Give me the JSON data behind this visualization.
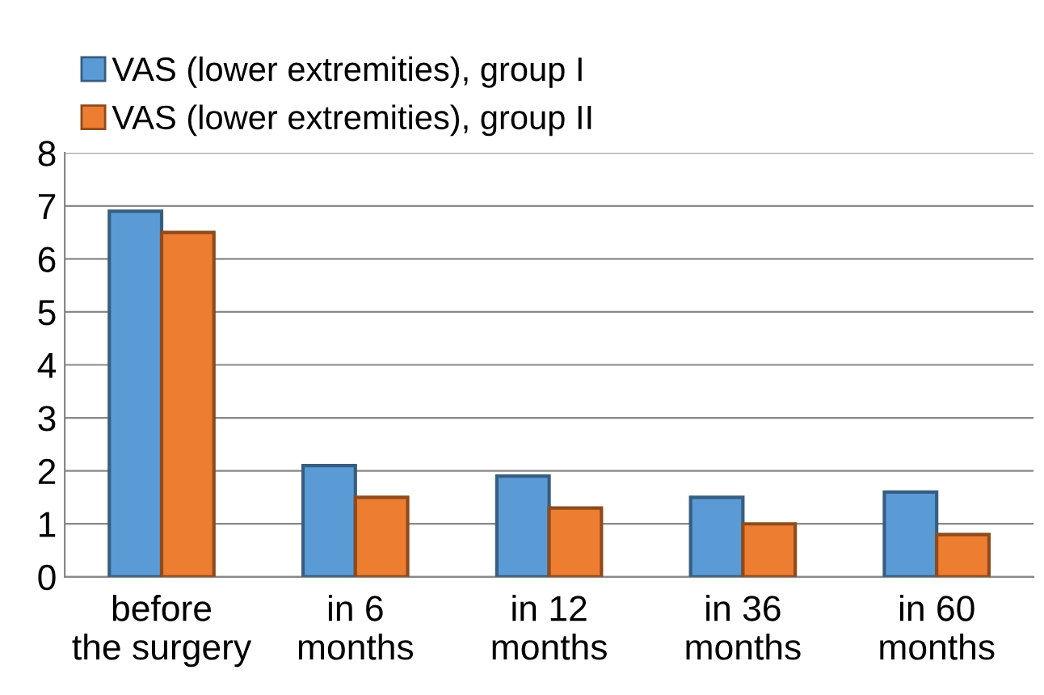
{
  "chart_data": {
    "type": "bar",
    "categories": [
      "before\nthe surgery",
      "in 6\nmonths",
      "in 12\nmonths",
      "in 36\nmonths",
      "in 60\nmonths"
    ],
    "series": [
      {
        "name": "VAS (lower extremities), group I",
        "color": "#5b9bd5",
        "values": [
          6.9,
          2.1,
          1.9,
          1.5,
          1.6
        ]
      },
      {
        "name": "VAS (lower extremities), group II",
        "color": "#ed7d31",
        "values": [
          6.5,
          1.5,
          1.3,
          1.0,
          0.8
        ]
      }
    ],
    "ylim": [
      0,
      8
    ],
    "yticks": [
      0,
      1,
      2,
      3,
      4,
      5,
      6,
      7,
      8
    ],
    "grid": "y",
    "legend": "top left"
  }
}
